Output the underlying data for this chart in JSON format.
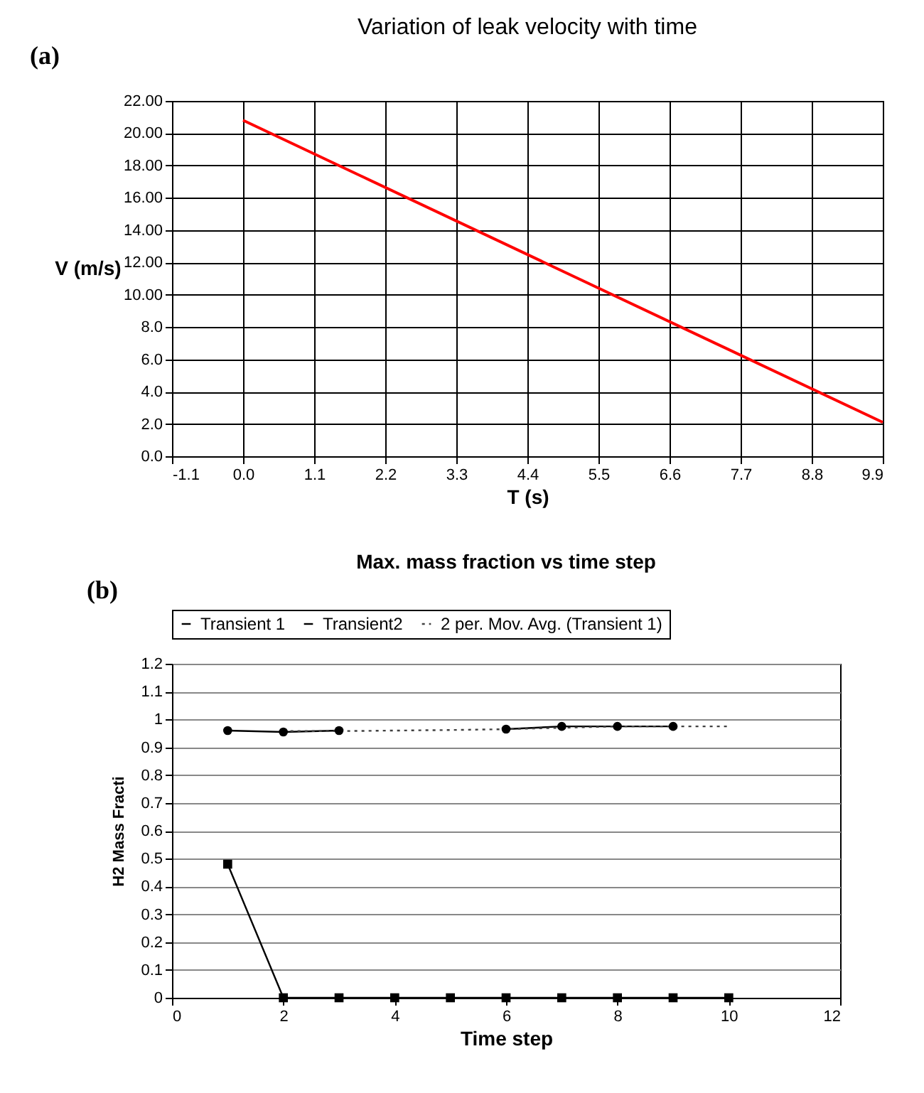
{
  "chart_data": [
    {
      "type": "line",
      "title": "Variation of leak velocity with time",
      "xlabel": "T (s)",
      "ylabel": "V (m/s)",
      "annotations": [
        "(a)"
      ],
      "series": [
        {
          "color": "#ff0000",
          "x": [
            0.0,
            9.9
          ],
          "values": [
            20.8,
            2.1
          ]
        }
      ],
      "xlim": [
        -1.1,
        9.9
      ],
      "xticks": [
        {
          "value": -1.1,
          "label": "-1.1"
        },
        {
          "value": 0,
          "label": "0.0"
        },
        1.1,
        2.2,
        3.3,
        4.4,
        5.5,
        6.6,
        7.7,
        8.8,
        9.9
      ],
      "ylim": [
        0,
        22
      ],
      "yticks": [
        {
          "value": 0,
          "label": "0.0"
        },
        {
          "value": 2,
          "label": "2.0"
        },
        {
          "value": 4,
          "label": "4.0"
        },
        {
          "value": 6,
          "label": "6.0"
        },
        {
          "value": 8,
          "label": "8.0"
        },
        {
          "value": 10,
          "label": "10.00"
        },
        {
          "value": 12,
          "label": "12.00"
        },
        {
          "value": 14,
          "label": "14.00"
        },
        {
          "value": 16,
          "label": "16.00"
        },
        {
          "value": 18,
          "label": "18.00"
        },
        {
          "value": 20,
          "label": "20.00"
        },
        {
          "value": 22,
          "label": "22.00"
        }
      ],
      "grid": true,
      "legend": false,
      "marker": "none",
      "line_style": "solid"
    },
    {
      "type": "line",
      "title": "Max. mass fraction vs time step",
      "xlabel": "Time step",
      "ylabel": "H2 Mass Fracti",
      "annotations": [
        "(b)"
      ],
      "series": [
        {
          "name": "Transient 1",
          "color": "#000000",
          "marker": "circle",
          "line_style": "solid",
          "x": [
            1,
            2,
            3,
            4,
            5,
            6,
            7,
            8,
            9
          ],
          "values": [
            0.96,
            0.955,
            0.96,
            null,
            null,
            0.965,
            0.975,
            0.975,
            0.975
          ]
        },
        {
          "name": "Transient2",
          "color": "#000000",
          "marker": "square",
          "line_style": "solid",
          "x": [
            1,
            2,
            3,
            4,
            5,
            6,
            7,
            8,
            9,
            10
          ],
          "values": [
            0.48,
            0,
            0,
            0,
            0,
            0,
            0,
            0,
            0,
            0
          ]
        },
        {
          "name": "2 per. Mov. Avg. (Transient 1)",
          "color": "#404040",
          "marker": "none",
          "line_style": "dotted",
          "x": [
            2,
            3,
            4,
            5,
            6,
            7,
            8,
            9,
            10
          ],
          "values": [
            0.958,
            0.958,
            0.96,
            0.962,
            0.965,
            0.97,
            0.975,
            0.975,
            0.975
          ]
        }
      ],
      "xlim": [
        0,
        12
      ],
      "xticks": [
        0,
        2,
        4,
        6,
        8,
        10,
        12
      ],
      "ylim": [
        0,
        1.2
      ],
      "yticks": [
        0,
        0.1,
        0.2,
        0.3,
        0.4,
        0.5,
        0.6,
        0.7,
        0.8,
        0.9,
        1,
        1.1,
        1.2
      ],
      "grid": "y",
      "legend": "top"
    }
  ]
}
